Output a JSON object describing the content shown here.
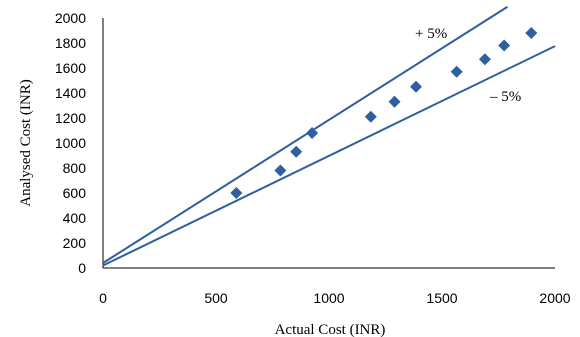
{
  "chart_data": {
    "type": "scatter",
    "title": "",
    "xlabel": "Actual Cost (INR)",
    "ylabel": "Analysed Cost (INR)",
    "xlim": [
      0,
      2000
    ],
    "ylim": [
      0,
      2000
    ],
    "x_ticks": [
      0,
      500,
      1000,
      1500,
      2000
    ],
    "y_ticks": [
      0,
      200,
      400,
      600,
      800,
      1000,
      1200,
      1400,
      1600,
      1800,
      2000
    ],
    "grid": false,
    "legend": "none",
    "marker_color": "#2e5f9e",
    "line_color": "#2e5f9e",
    "series": [
      {
        "marker": "diamond",
        "points": [
          {
            "x": 590,
            "y": 600
          },
          {
            "x": 785,
            "y": 780
          },
          {
            "x": 855,
            "y": 930
          },
          {
            "x": 925,
            "y": 1080
          },
          {
            "x": 1185,
            "y": 1210
          },
          {
            "x": 1290,
            "y": 1330
          },
          {
            "x": 1385,
            "y": 1450
          },
          {
            "x": 1565,
            "y": 1570
          },
          {
            "x": 1690,
            "y": 1670
          },
          {
            "x": 1775,
            "y": 1780
          },
          {
            "x": 1895,
            "y": 1880
          }
        ]
      }
    ],
    "reference_lines": [
      {
        "label": "+ 5%",
        "points": [
          [
            0,
            40
          ],
          [
            1790,
            2090
          ]
        ]
      },
      {
        "label": "– 5%",
        "points": [
          [
            0,
            20
          ],
          [
            2000,
            1775
          ]
        ]
      }
    ]
  }
}
